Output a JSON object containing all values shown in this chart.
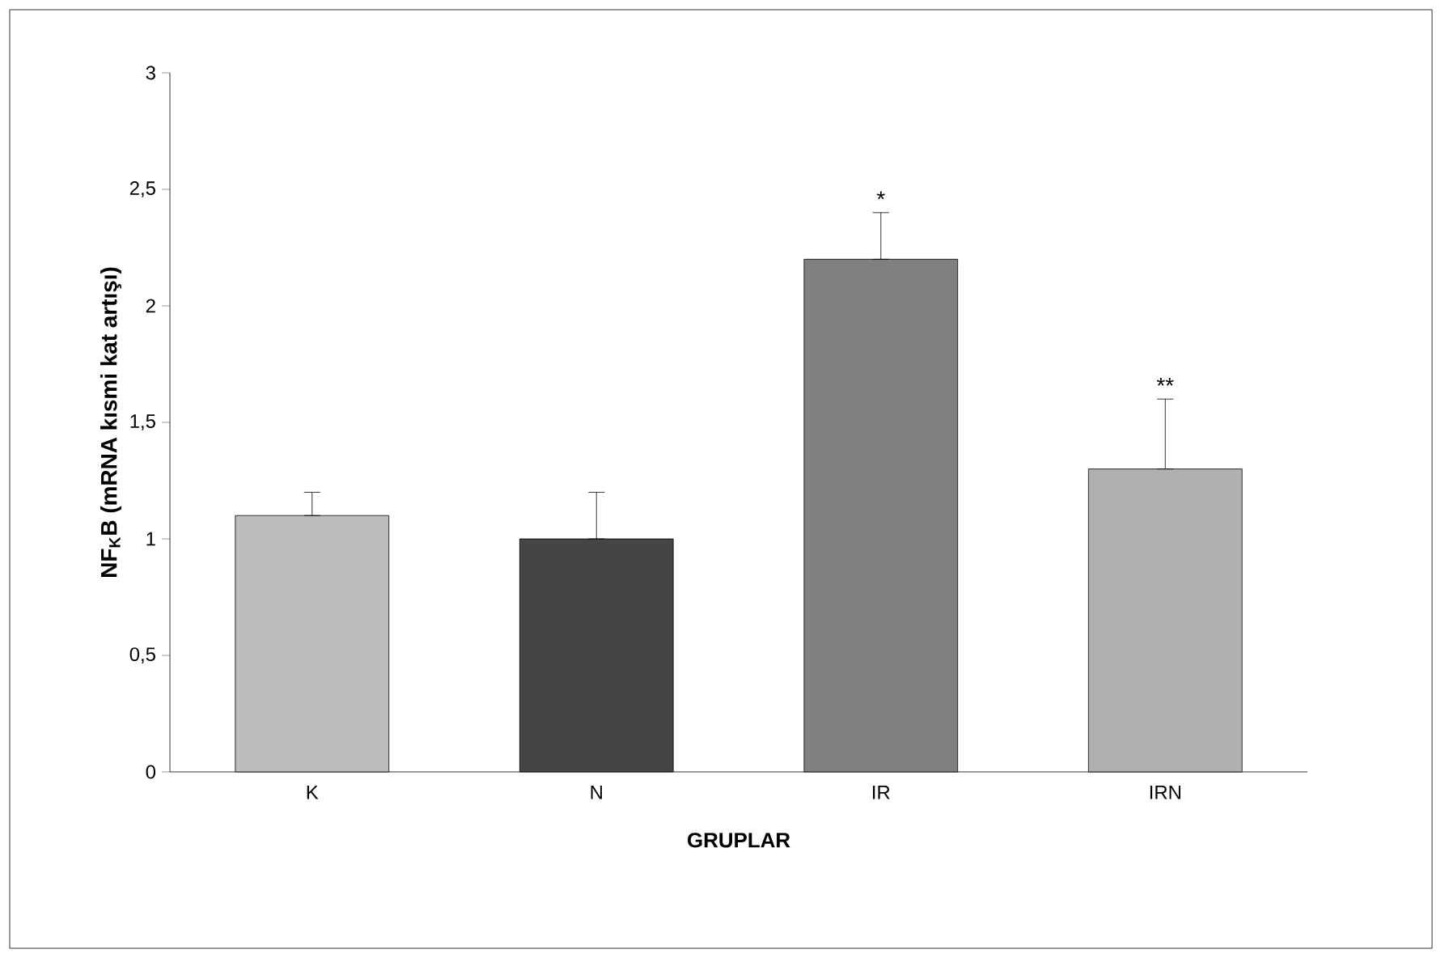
{
  "chart_data": {
    "type": "bar",
    "xlabel": "**GRUPLAR**",
    "ylabel": "**NF$_{K}$B (mRNA kısmi kat artışı)**",
    "categories": [
      "K",
      "N",
      "IR",
      "IRN"
    ],
    "values": [
      1.1,
      1.0,
      2.2,
      1.3
    ],
    "errors": [
      [
        1.1,
        1.2
      ],
      [
        1.0,
        1.2
      ],
      [
        2.2,
        2.4
      ],
      [
        1.3,
        1.6
      ]
    ],
    "colors": [
      "#bdbdbd",
      "#454545",
      "#808080",
      "#b0b0b0"
    ],
    "ylim": [
      0,
      3
    ],
    "yticks": [
      0,
      {
        "value": 0.5,
        "label": "0,5"
      },
      1,
      {
        "value": 1.5,
        "label": "1,5"
      },
      2,
      {
        "value": 2.5,
        "label": "2,5"
      },
      3
    ],
    "annotations": [
      {
        "text": "*",
        "x": "IR",
        "y": 2.4
      },
      {
        "text": "**",
        "x": "IRN",
        "y": 1.6
      }
    ]
  }
}
